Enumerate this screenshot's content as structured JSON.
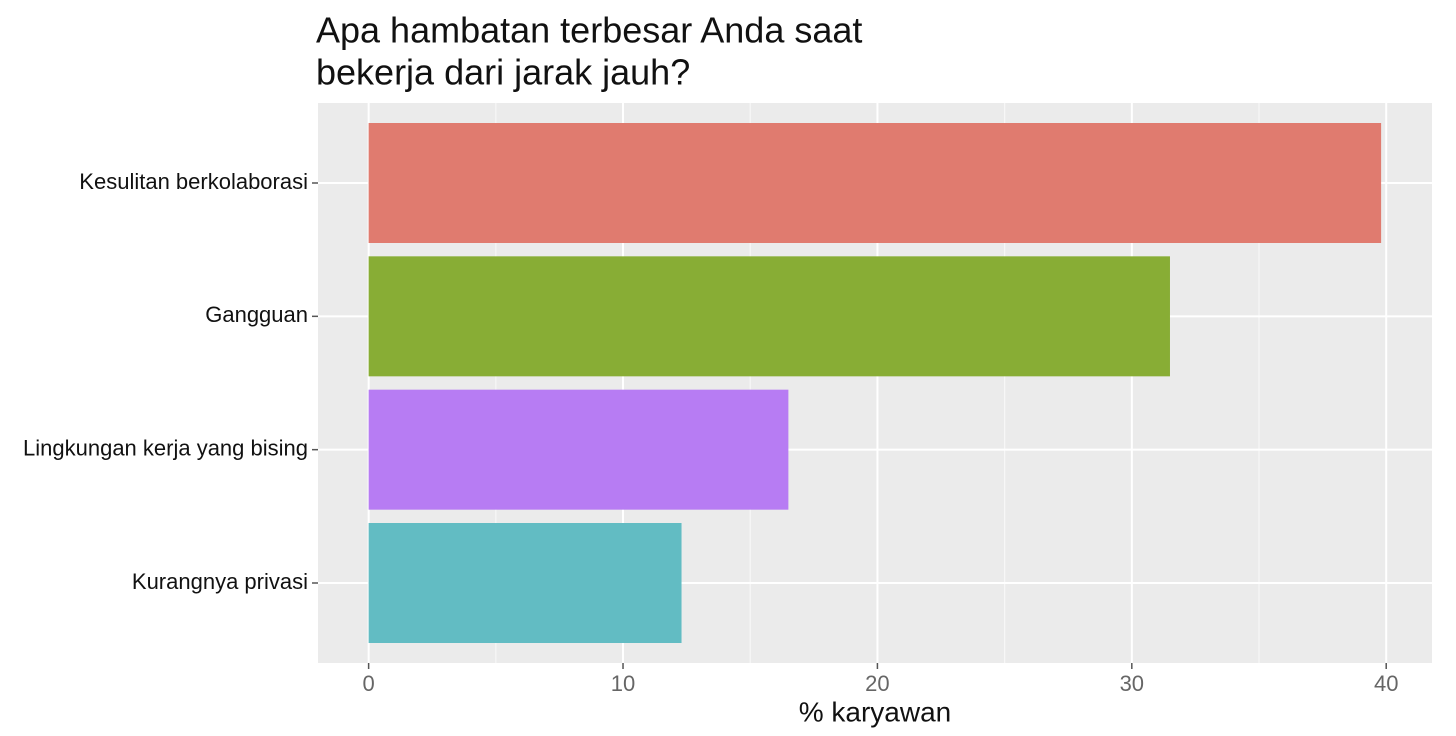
{
  "chart_data": {
    "type": "bar",
    "orientation": "horizontal",
    "title": [
      "Apa hambatan terbesar Anda saat",
      "bekerja dari jarak jauh?"
    ],
    "x_label": "% karyawan",
    "categories": [
      "Kesulitan berkolaborasi",
      "Gangguan",
      "Lingkungan kerja yang bising",
      "Kurangnya privasi"
    ],
    "values": [
      39.8,
      31.5,
      16.5,
      12.3
    ],
    "colors": [
      "#e07b6f",
      "#88ad35",
      "#b77cf3",
      "#62bcc3"
    ],
    "xlim": [
      -1.99,
      41.8
    ],
    "xticks": [
      0,
      10,
      20,
      30,
      40
    ],
    "minor_xticks": [
      5,
      15,
      25,
      35
    ],
    "grid": true
  }
}
